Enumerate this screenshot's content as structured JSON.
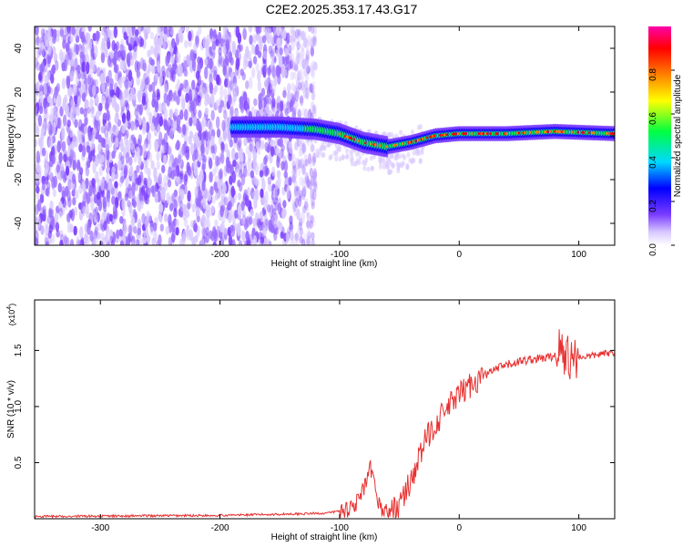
{
  "title": "C2E2.2025.353.17.43.G17",
  "chart_data": [
    {
      "type": "heatmap",
      "xlabel": "Height of straight line (km)",
      "ylabel": "Frequency (Hz)",
      "xlim": [
        -355,
        130
      ],
      "ylim": [
        -50,
        50
      ],
      "xticks": [
        -300,
        -200,
        -100,
        0,
        100
      ],
      "yticks": [
        -40,
        -20,
        0,
        20,
        40
      ],
      "colorbar": {
        "label": "Normalized spectral amplitude",
        "range": [
          0,
          1
        ],
        "ticks": [
          0.0,
          0.2,
          0.4,
          0.6,
          0.8
        ],
        "colormap": [
          "#ffffff",
          "#d8c8ff",
          "#7a3cff",
          "#0000ff",
          "#00d8ff",
          "#00ff40",
          "#ffff00",
          "#ff7f00",
          "#ff0000",
          "#ff00aa"
        ]
      },
      "ridge": [
        {
          "x": -190,
          "y": 4
        },
        {
          "x": -150,
          "y": 4
        },
        {
          "x": -120,
          "y": 3
        },
        {
          "x": -100,
          "y": 1
        },
        {
          "x": -80,
          "y": -3
        },
        {
          "x": -60,
          "y": -5
        },
        {
          "x": -40,
          "y": -3
        },
        {
          "x": -20,
          "y": 0
        },
        {
          "x": 0,
          "y": 1
        },
        {
          "x": 40,
          "y": 1
        },
        {
          "x": 80,
          "y": 2
        },
        {
          "x": 130,
          "y": 1
        }
      ]
    },
    {
      "type": "line",
      "xlabel": "Height of straight line (km)",
      "ylabel": "SNR (10 * v/v)",
      "multiplier": "(x10",
      "multiplier_exp": "4",
      "multiplier_close": ")",
      "xlim": [
        -355,
        130
      ],
      "ylim": [
        0,
        1.95
      ],
      "xticks": [
        -300,
        -200,
        -100,
        0,
        100
      ],
      "yticks": [
        0.5,
        1.0,
        1.5
      ],
      "ytick_labels": [
        "0.5",
        "1.0",
        "1.5"
      ],
      "color": "#e83030",
      "series": [
        {
          "name": "SNR",
          "x": [
            -355,
            -200,
            -150,
            -110,
            -95,
            -85,
            -78,
            -74,
            -70,
            -65,
            -58,
            -50,
            -42,
            -35,
            -28,
            -20,
            -12,
            -5,
            0,
            5,
            10,
            20,
            30,
            40,
            50,
            60,
            70,
            80,
            85,
            88,
            90,
            92,
            95,
            100,
            110,
            120,
            130
          ],
          "values": [
            0.02,
            0.03,
            0.04,
            0.05,
            0.08,
            0.15,
            0.3,
            0.45,
            0.25,
            0.08,
            0.06,
            0.12,
            0.3,
            0.5,
            0.7,
            0.85,
            0.95,
            1.05,
            1.1,
            1.15,
            1.2,
            1.27,
            1.33,
            1.37,
            1.4,
            1.42,
            1.43,
            1.45,
            1.55,
            1.35,
            1.6,
            1.4,
            1.45,
            1.44,
            1.45,
            1.47,
            1.48
          ]
        }
      ]
    }
  ]
}
